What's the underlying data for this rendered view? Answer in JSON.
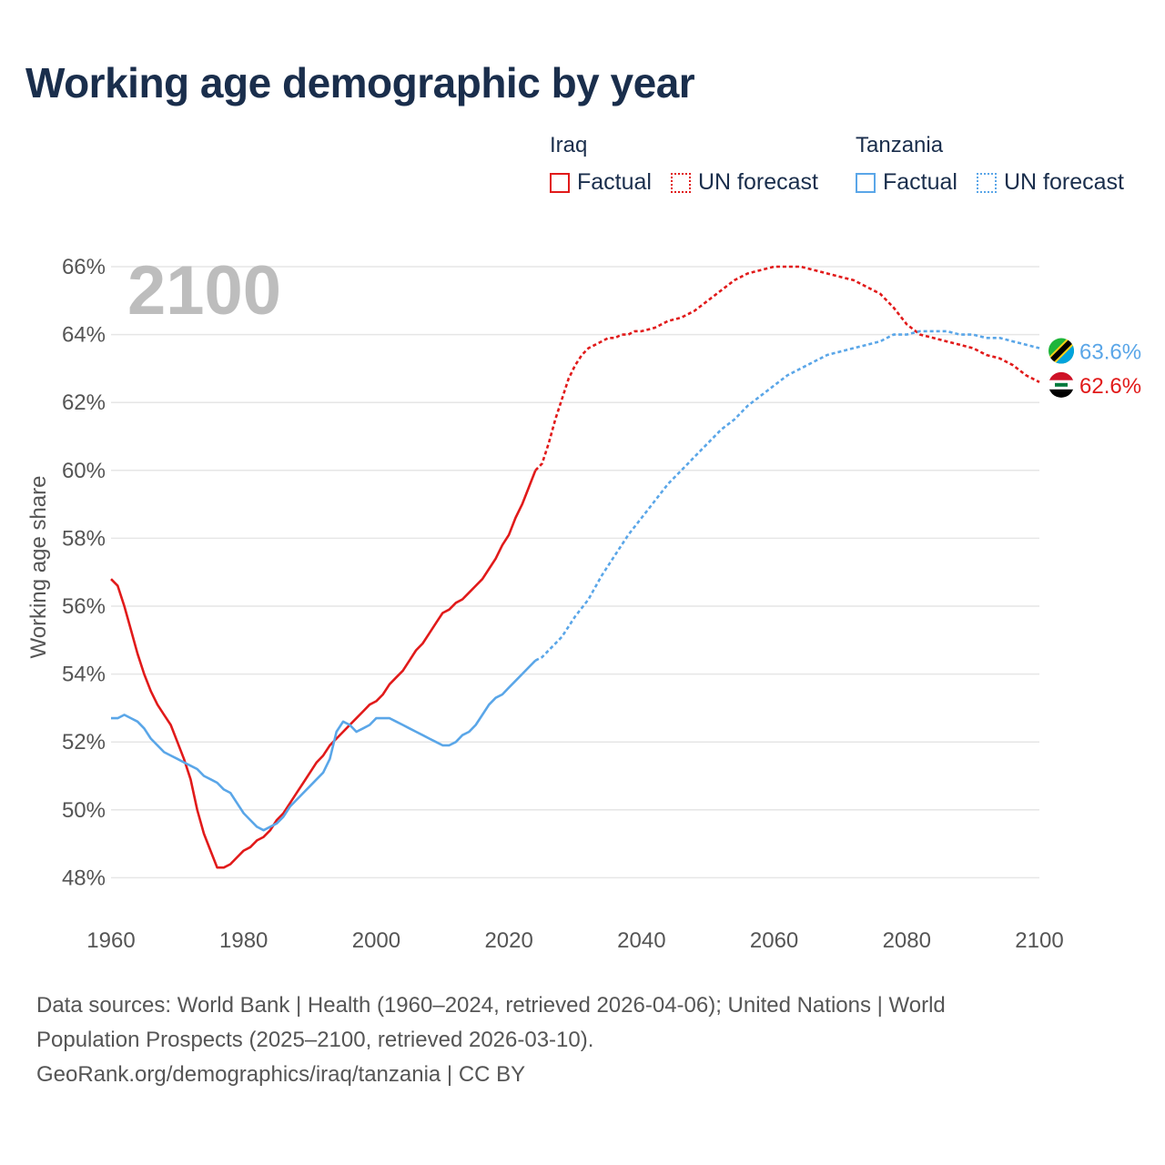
{
  "title": "Working age demographic by year",
  "year_label": "2100",
  "legend": {
    "iraq": {
      "name": "Iraq",
      "factual": "Factual",
      "forecast": "UN forecast"
    },
    "tanzania": {
      "name": "Tanzania",
      "factual": "Factual",
      "forecast": "UN forecast"
    }
  },
  "footer": {
    "line1": "Data sources: World Bank | Health (1960–2024, retrieved 2026-04-06); United Nations | World",
    "line2": "Population Prospects (2025–2100, retrieved 2026-03-10).",
    "line3": "GeoRank.org/demographics/iraq/tanzania | CC BY"
  },
  "colors": {
    "iraq": "#e11a1a",
    "tanzania": "#5aa6e8",
    "grid": "#e6e6e6",
    "axis_text": "#555555"
  },
  "chart_data": {
    "type": "line",
    "ylabel": "Working age share",
    "xlabel": "",
    "xlim": [
      1960,
      2100
    ],
    "ylim": [
      47,
      66.5
    ],
    "x_ticks": [
      1960,
      1980,
      2000,
      2020,
      2040,
      2060,
      2080,
      2100
    ],
    "x_tick_labels": [
      "1960",
      "1980",
      "2000",
      "2020",
      "2040",
      "2060",
      "2080",
      "2100"
    ],
    "y_ticks": [
      48,
      50,
      52,
      54,
      56,
      58,
      60,
      62,
      64,
      66
    ],
    "y_tick_labels": [
      "48%",
      "50%",
      "52%",
      "54%",
      "56%",
      "58%",
      "60%",
      "62%",
      "64%",
      "66%"
    ],
    "forecast_start": 2024,
    "series": [
      {
        "name": "Iraq",
        "key": "iraq",
        "end_label": "62.6%",
        "flag": "iraq-flag-icon",
        "points": [
          [
            1960,
            56.8
          ],
          [
            1961,
            56.6
          ],
          [
            1962,
            56.0
          ],
          [
            1963,
            55.3
          ],
          [
            1964,
            54.6
          ],
          [
            1965,
            54.0
          ],
          [
            1966,
            53.5
          ],
          [
            1967,
            53.1
          ],
          [
            1968,
            52.8
          ],
          [
            1969,
            52.5
          ],
          [
            1970,
            52.0
          ],
          [
            1971,
            51.5
          ],
          [
            1972,
            50.9
          ],
          [
            1973,
            50.0
          ],
          [
            1974,
            49.3
          ],
          [
            1975,
            48.8
          ],
          [
            1976,
            48.3
          ],
          [
            1977,
            48.3
          ],
          [
            1978,
            48.4
          ],
          [
            1979,
            48.6
          ],
          [
            1980,
            48.8
          ],
          [
            1981,
            48.9
          ],
          [
            1982,
            49.1
          ],
          [
            1983,
            49.2
          ],
          [
            1984,
            49.4
          ],
          [
            1985,
            49.7
          ],
          [
            1986,
            49.9
          ],
          [
            1987,
            50.2
          ],
          [
            1988,
            50.5
          ],
          [
            1989,
            50.8
          ],
          [
            1990,
            51.1
          ],
          [
            1991,
            51.4
          ],
          [
            1992,
            51.6
          ],
          [
            1993,
            51.9
          ],
          [
            1994,
            52.1
          ],
          [
            1995,
            52.3
          ],
          [
            1996,
            52.5
          ],
          [
            1997,
            52.7
          ],
          [
            1998,
            52.9
          ],
          [
            1999,
            53.1
          ],
          [
            2000,
            53.2
          ],
          [
            2001,
            53.4
          ],
          [
            2002,
            53.7
          ],
          [
            2003,
            53.9
          ],
          [
            2004,
            54.1
          ],
          [
            2005,
            54.4
          ],
          [
            2006,
            54.7
          ],
          [
            2007,
            54.9
          ],
          [
            2008,
            55.2
          ],
          [
            2009,
            55.5
          ],
          [
            2010,
            55.8
          ],
          [
            2011,
            55.9
          ],
          [
            2012,
            56.1
          ],
          [
            2013,
            56.2
          ],
          [
            2014,
            56.4
          ],
          [
            2015,
            56.6
          ],
          [
            2016,
            56.8
          ],
          [
            2017,
            57.1
          ],
          [
            2018,
            57.4
          ],
          [
            2019,
            57.8
          ],
          [
            2020,
            58.1
          ],
          [
            2021,
            58.6
          ],
          [
            2022,
            59.0
          ],
          [
            2023,
            59.5
          ],
          [
            2024,
            60.0
          ],
          [
            2025,
            60.2
          ],
          [
            2026,
            60.8
          ],
          [
            2027,
            61.5
          ],
          [
            2028,
            62.1
          ],
          [
            2029,
            62.7
          ],
          [
            2030,
            63.1
          ],
          [
            2031,
            63.4
          ],
          [
            2032,
            63.6
          ],
          [
            2033,
            63.7
          ],
          [
            2034,
            63.8
          ],
          [
            2035,
            63.9
          ],
          [
            2036,
            63.9
          ],
          [
            2037,
            64.0
          ],
          [
            2038,
            64.0
          ],
          [
            2039,
            64.1
          ],
          [
            2040,
            64.1
          ],
          [
            2042,
            64.2
          ],
          [
            2044,
            64.4
          ],
          [
            2046,
            64.5
          ],
          [
            2048,
            64.7
          ],
          [
            2050,
            65.0
          ],
          [
            2052,
            65.3
          ],
          [
            2054,
            65.6
          ],
          [
            2056,
            65.8
          ],
          [
            2058,
            65.9
          ],
          [
            2060,
            66.0
          ],
          [
            2062,
            66.0
          ],
          [
            2064,
            66.0
          ],
          [
            2066,
            65.9
          ],
          [
            2068,
            65.8
          ],
          [
            2070,
            65.7
          ],
          [
            2072,
            65.6
          ],
          [
            2074,
            65.4
          ],
          [
            2076,
            65.2
          ],
          [
            2078,
            64.8
          ],
          [
            2080,
            64.3
          ],
          [
            2082,
            64.0
          ],
          [
            2084,
            63.9
          ],
          [
            2086,
            63.8
          ],
          [
            2088,
            63.7
          ],
          [
            2090,
            63.6
          ],
          [
            2092,
            63.4
          ],
          [
            2094,
            63.3
          ],
          [
            2096,
            63.1
          ],
          [
            2098,
            62.8
          ],
          [
            2100,
            62.6
          ]
        ]
      },
      {
        "name": "Tanzania",
        "key": "tanzania",
        "end_label": "63.6%",
        "flag": "tanzania-flag-icon",
        "points": [
          [
            1960,
            52.7
          ],
          [
            1961,
            52.7
          ],
          [
            1962,
            52.8
          ],
          [
            1963,
            52.7
          ],
          [
            1964,
            52.6
          ],
          [
            1965,
            52.4
          ],
          [
            1966,
            52.1
          ],
          [
            1967,
            51.9
          ],
          [
            1968,
            51.7
          ],
          [
            1969,
            51.6
          ],
          [
            1970,
            51.5
          ],
          [
            1971,
            51.4
          ],
          [
            1972,
            51.3
          ],
          [
            1973,
            51.2
          ],
          [
            1974,
            51.0
          ],
          [
            1975,
            50.9
          ],
          [
            1976,
            50.8
          ],
          [
            1977,
            50.6
          ],
          [
            1978,
            50.5
          ],
          [
            1979,
            50.2
          ],
          [
            1980,
            49.9
          ],
          [
            1981,
            49.7
          ],
          [
            1982,
            49.5
          ],
          [
            1983,
            49.4
          ],
          [
            1984,
            49.5
          ],
          [
            1985,
            49.6
          ],
          [
            1986,
            49.8
          ],
          [
            1987,
            50.1
          ],
          [
            1988,
            50.3
          ],
          [
            1989,
            50.5
          ],
          [
            1990,
            50.7
          ],
          [
            1991,
            50.9
          ],
          [
            1992,
            51.1
          ],
          [
            1993,
            51.5
          ],
          [
            1994,
            52.3
          ],
          [
            1995,
            52.6
          ],
          [
            1996,
            52.5
          ],
          [
            1997,
            52.3
          ],
          [
            1998,
            52.4
          ],
          [
            1999,
            52.5
          ],
          [
            2000,
            52.7
          ],
          [
            2001,
            52.7
          ],
          [
            2002,
            52.7
          ],
          [
            2003,
            52.6
          ],
          [
            2004,
            52.5
          ],
          [
            2005,
            52.4
          ],
          [
            2006,
            52.3
          ],
          [
            2007,
            52.2
          ],
          [
            2008,
            52.1
          ],
          [
            2009,
            52.0
          ],
          [
            2010,
            51.9
          ],
          [
            2011,
            51.9
          ],
          [
            2012,
            52.0
          ],
          [
            2013,
            52.2
          ],
          [
            2014,
            52.3
          ],
          [
            2015,
            52.5
          ],
          [
            2016,
            52.8
          ],
          [
            2017,
            53.1
          ],
          [
            2018,
            53.3
          ],
          [
            2019,
            53.4
          ],
          [
            2020,
            53.6
          ],
          [
            2021,
            53.8
          ],
          [
            2022,
            54.0
          ],
          [
            2023,
            54.2
          ],
          [
            2024,
            54.4
          ],
          [
            2025,
            54.5
          ],
          [
            2026,
            54.7
          ],
          [
            2028,
            55.1
          ],
          [
            2030,
            55.7
          ],
          [
            2032,
            56.2
          ],
          [
            2034,
            56.9
          ],
          [
            2036,
            57.5
          ],
          [
            2038,
            58.1
          ],
          [
            2040,
            58.6
          ],
          [
            2042,
            59.1
          ],
          [
            2044,
            59.6
          ],
          [
            2046,
            60.0
          ],
          [
            2048,
            60.4
          ],
          [
            2050,
            60.8
          ],
          [
            2052,
            61.2
          ],
          [
            2054,
            61.5
          ],
          [
            2056,
            61.9
          ],
          [
            2058,
            62.2
          ],
          [
            2060,
            62.5
          ],
          [
            2062,
            62.8
          ],
          [
            2064,
            63.0
          ],
          [
            2066,
            63.2
          ],
          [
            2068,
            63.4
          ],
          [
            2070,
            63.5
          ],
          [
            2072,
            63.6
          ],
          [
            2074,
            63.7
          ],
          [
            2076,
            63.8
          ],
          [
            2078,
            64.0
          ],
          [
            2080,
            64.0
          ],
          [
            2082,
            64.1
          ],
          [
            2084,
            64.1
          ],
          [
            2086,
            64.1
          ],
          [
            2088,
            64.0
          ],
          [
            2090,
            64.0
          ],
          [
            2092,
            63.9
          ],
          [
            2094,
            63.9
          ],
          [
            2096,
            63.8
          ],
          [
            2098,
            63.7
          ],
          [
            2100,
            63.6
          ]
        ]
      }
    ]
  }
}
